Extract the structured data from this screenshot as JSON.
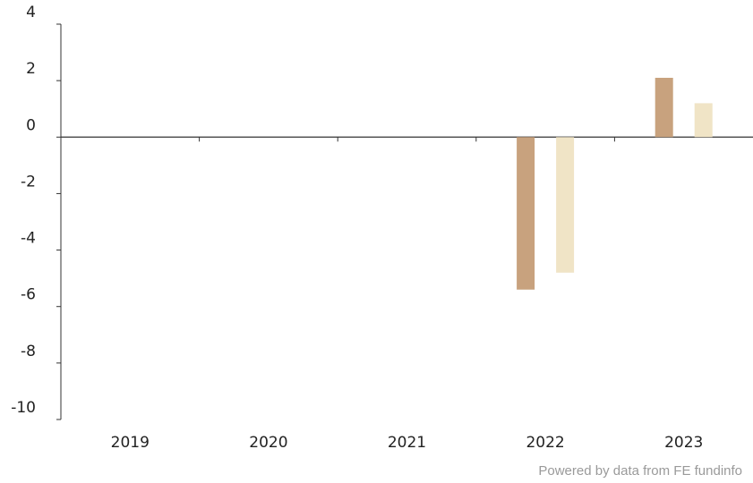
{
  "chart_data": {
    "type": "bar",
    "categories": [
      "2019",
      "2020",
      "2021",
      "2022",
      "2023"
    ],
    "series": [
      {
        "values": [
          null,
          null,
          null,
          -5.4,
          2.1
        ],
        "color": "#c8a27e"
      },
      {
        "values": [
          null,
          null,
          null,
          -4.8,
          1.2
        ],
        "color": "#f0e4c6"
      }
    ],
    "ylim": [
      -10,
      4
    ],
    "yticks": [
      4,
      2,
      0,
      -2,
      -4,
      -6,
      -8,
      -10
    ],
    "grid": false,
    "legend": "none"
  },
  "footer": {
    "credit": "Powered by data from FE fundinfo"
  }
}
